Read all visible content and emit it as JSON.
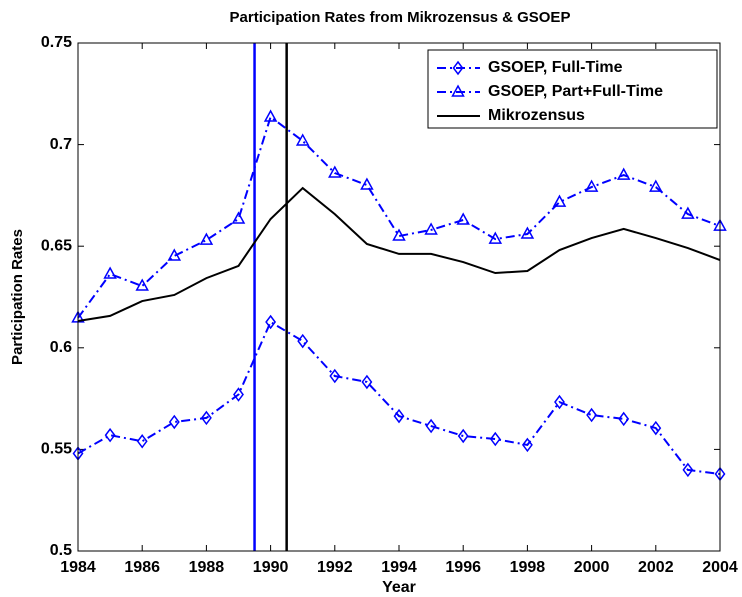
{
  "chart_data": {
    "type": "line",
    "title": "Participation Rates from Mikrozensus & GSOEP",
    "x_label": "Year",
    "y_label": "Participation Rates",
    "x": [
      1984,
      1985,
      1986,
      1987,
      1988,
      1989,
      1990,
      1991,
      1992,
      1993,
      1994,
      1995,
      1996,
      1997,
      1998,
      1999,
      2000,
      2001,
      2002,
      2003,
      2004
    ],
    "series": [
      {
        "name": "GSOEP, Full-Time",
        "color": "#0000ff",
        "marker": "diamond",
        "linestyle": "dashdot",
        "values": [
          0.548,
          0.557,
          0.554,
          0.5635,
          0.5655,
          0.577,
          0.6127,
          0.6033,
          0.5861,
          0.5832,
          0.5664,
          0.5615,
          0.5566,
          0.5551,
          0.5522,
          0.5733,
          0.5669,
          0.565,
          0.5605,
          0.5399,
          0.5379
        ]
      },
      {
        "name": "GSOEP, Part+Full-Time",
        "color": "#0000ff",
        "marker": "triangle",
        "linestyle": "dashdot",
        "values": [
          0.6147,
          0.6363,
          0.6304,
          0.6452,
          0.653,
          0.6634,
          0.7136,
          0.7018,
          0.686,
          0.6801,
          0.655,
          0.658,
          0.6629,
          0.6535,
          0.656,
          0.6717,
          0.6791,
          0.685,
          0.6791,
          0.6658,
          0.6599
        ]
      },
      {
        "name": "Mikrozensus",
        "color": "#000000",
        "marker": "none",
        "linestyle": "solid",
        "values": [
          0.6132,
          0.6157,
          0.623,
          0.626,
          0.6343,
          0.6403,
          0.6634,
          0.6786,
          0.6658,
          0.6511,
          0.6462,
          0.6462,
          0.6422,
          0.6368,
          0.6378,
          0.6481,
          0.654,
          0.6585,
          0.654,
          0.6491,
          0.6432
        ]
      }
    ],
    "vlines": [
      {
        "x": 1989.5,
        "color": "#0000ff"
      },
      {
        "x": 1990.5,
        "color": "#000000"
      }
    ],
    "xlim": [
      1984,
      2004
    ],
    "xticks": [
      1984,
      1986,
      1988,
      1990,
      1992,
      1994,
      1996,
      1998,
      2000,
      2002,
      2004
    ],
    "ylim": [
      0.5,
      0.75
    ],
    "yticks": [
      0.5,
      0.55,
      0.6,
      0.65,
      0.7,
      0.75
    ],
    "legend": "upper right",
    "grid": false
  }
}
